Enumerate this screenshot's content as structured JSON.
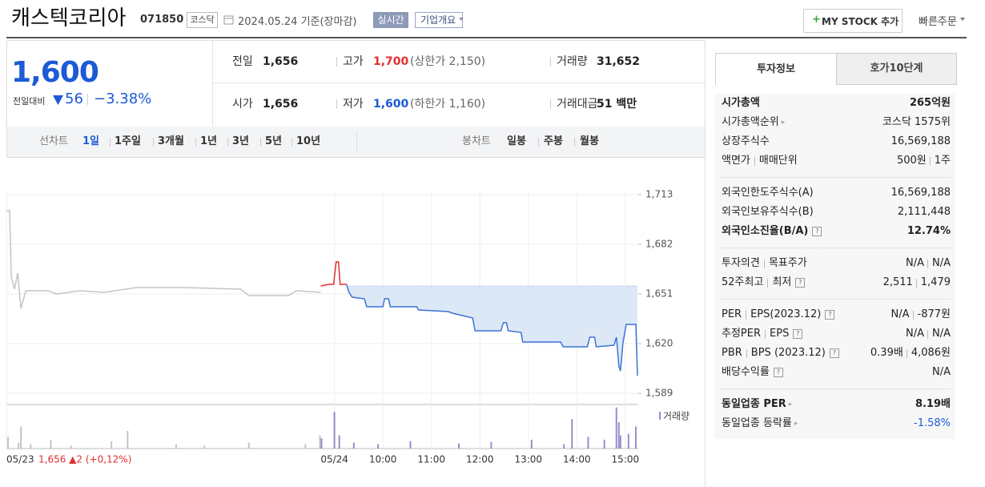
{
  "header": {
    "title": "캐스텍코리아",
    "code": "071850",
    "market": "코스닥",
    "date": "2024.05.24 기준(장마감)",
    "realtime": "실시간",
    "company_info": "기업개요",
    "my_stock": "MY STOCK 추가",
    "quick_order": "빠른주문"
  },
  "price": {
    "current": "1,600",
    "change_label": "전일대비",
    "change": "56",
    "rate": "−3.38%"
  },
  "summary": [
    [
      {
        "label": "전일",
        "value": "1,656"
      },
      {
        "label": "고가",
        "value": "1,700",
        "extra": "(상한가 2,150)",
        "color": "#e12f2f"
      },
      {
        "label": "거래량",
        "value": "31,652"
      }
    ],
    [
      {
        "label": "시가",
        "value": "1,656"
      },
      {
        "label": "저가",
        "value": "1,600",
        "extra": "(하한가 1,160)",
        "color": "#1c5ad6"
      },
      {
        "label": "거래대금",
        "value": "51 백만"
      }
    ]
  ],
  "chart_tabs": {
    "line_label": "선차트",
    "line_periods": [
      "1일",
      "1주일",
      "3개월",
      "1년",
      "3년",
      "5년",
      "10년"
    ],
    "active": 0,
    "candle_label": "봉차트",
    "candle_periods": [
      "일봉",
      "주봉",
      "월봉"
    ]
  },
  "chart_data": {
    "type": "line",
    "xlim": [
      0,
      782
    ],
    "ylim": [
      1582,
      1728.5
    ],
    "yticks": [
      {
        "value": 1713,
        "label": "1,713"
      },
      {
        "value": 1682,
        "label": "1,682"
      },
      {
        "value": 1651,
        "label": "1,651"
      },
      {
        "value": 1620,
        "label": "1,620"
      },
      {
        "value": 1589,
        "label": "1,589"
      }
    ],
    "xticks": [
      {
        "value": 0,
        "label": "05/23"
      },
      {
        "value": 406,
        "label": "05/24"
      },
      {
        "value": 466,
        "label": "10:00"
      },
      {
        "value": 526,
        "label": "11:00"
      },
      {
        "value": 586,
        "label": "12:00"
      },
      {
        "value": 646,
        "label": "13:00"
      },
      {
        "value": 706,
        "label": "14:00"
      },
      {
        "value": 766,
        "label": "15:00"
      }
    ],
    "reference": 1656,
    "prev_label": "1,656 ▲2 (+0,12%)",
    "series": [
      {
        "color": "#c4c4c4",
        "x": [
          0,
          4,
          6,
          10,
          14,
          18,
          24,
          52,
          62,
          91,
          121,
          161,
          220,
          290,
          300,
          349,
          359,
          389
        ],
        "values": [
          1703,
          1703,
          1662,
          1654,
          1664,
          1642,
          1653,
          1653,
          1651,
          1653,
          1652,
          1655,
          1655,
          1654,
          1650,
          1650,
          1653,
          1652
        ]
      },
      {
        "color": "#e12f2f",
        "x": [
          389,
          399,
          405,
          408,
          411,
          413,
          421
        ],
        "values": [
          1656,
          1657,
          1657,
          1671,
          1671,
          1657,
          1657
        ]
      },
      {
        "color": "#3a73d6",
        "fill": "#dde8f7",
        "x": [
          421,
          424,
          428,
          443,
          446,
          466,
          468,
          473,
          475,
          508,
          510,
          547,
          552,
          577,
          580,
          612,
          615,
          619,
          621,
          637,
          639,
          686,
          689,
          719,
          722,
          728,
          730,
          752,
          755,
          758,
          760,
          763,
          767,
          779,
          781
        ],
        "values": [
          1657,
          1652,
          1649,
          1648,
          1643,
          1643,
          1648,
          1648,
          1643,
          1643,
          1641,
          1640,
          1639,
          1636,
          1628,
          1628,
          1633,
          1633,
          1628,
          1627,
          1621,
          1621,
          1618,
          1618,
          1624,
          1624,
          1618,
          1619,
          1624,
          1606,
          1603,
          1620,
          1632,
          1632,
          1600
        ]
      }
    ],
    "volume": {
      "label": "거래량",
      "ylim": [
        0,
        3000
      ],
      "series": [
        {
          "color": "#c4c4c4",
          "x": [
            2,
            15,
            18,
            30,
            55,
            80,
            130,
            150,
            210,
            245,
            300,
            370,
            388
          ],
          "values": [
            800,
            400,
            1500,
            300,
            600,
            200,
            500,
            1200,
            300,
            200,
            400,
            300,
            900
          ]
        },
        {
          "color": "#958fcb",
          "x": [
            390,
            406,
            412,
            430,
            460,
            500,
            560,
            600,
            650,
            690,
            700,
            720,
            740,
            755,
            758,
            760,
            770,
            779
          ],
          "values": [
            700,
            2500,
            900,
            400,
            300,
            500,
            350,
            450,
            600,
            300,
            2000,
            800,
            600,
            2800,
            1800,
            900,
            1000,
            1500
          ]
        }
      ]
    }
  },
  "info_tabs": [
    "투자정보",
    "호가10단계"
  ],
  "info": [
    [
      {
        "label": [
          "시가총액"
        ],
        "value": [
          "265억원"
        ],
        "bold": true
      },
      {
        "label": [
          "시가총액순위"
        ],
        "value": [
          "코스닥 1575위"
        ],
        "arrow": true
      },
      {
        "label": [
          "상장주식수"
        ],
        "value": [
          "16,569,188"
        ]
      },
      {
        "label": [
          "액면가",
          "매매단위"
        ],
        "value": [
          "500원",
          "1주"
        ]
      }
    ],
    [
      {
        "label": [
          "외국인한도주식수(A)"
        ],
        "value": [
          "16,569,188"
        ]
      },
      {
        "label": [
          "외국인보유주식수(B)"
        ],
        "value": [
          "2,111,448"
        ]
      },
      {
        "label": [
          "외국인소진율(B/A)"
        ],
        "value": [
          "12.74%"
        ],
        "bold": true,
        "help": true
      }
    ],
    [
      {
        "label": [
          "투자의견",
          "목표주가"
        ],
        "value": [
          "N/A",
          "N/A"
        ]
      },
      {
        "label": [
          "52주최고",
          "최저"
        ],
        "value": [
          "2,511",
          "1,479"
        ],
        "help": true
      }
    ],
    [
      {
        "label": [
          "PER",
          "EPS(2023.12)"
        ],
        "value": [
          "N/A",
          "-877원"
        ],
        "help": true
      },
      {
        "label": [
          "추정PER",
          "EPS"
        ],
        "value": [
          "N/A",
          "N/A"
        ],
        "help": true
      },
      {
        "label": [
          "PBR",
          "BPS (2023.12)"
        ],
        "value": [
          "0.39배",
          "4,086원"
        ],
        "help": true
      },
      {
        "label": [
          "배당수익률"
        ],
        "value": [
          "N/A"
        ],
        "help": true
      }
    ],
    [
      {
        "label": [
          "동일업종 PER"
        ],
        "value": [
          "8.19배"
        ],
        "bold": true,
        "arrow": true
      },
      {
        "label": [
          "동일업종 등락률"
        ],
        "value": [
          "-1.58%"
        ],
        "arrow": true,
        "color": "#1c5ad6"
      }
    ]
  ]
}
